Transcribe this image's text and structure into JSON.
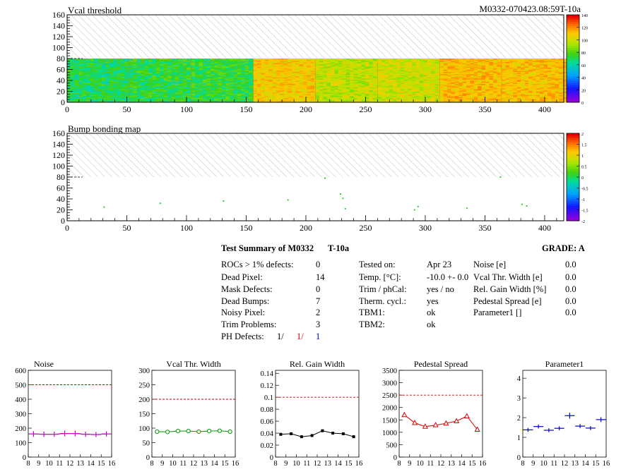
{
  "header": {
    "left_title": "Vcal threshold",
    "right_title": "M0332-070423.08:59T-10a"
  },
  "chart_data": [
    {
      "type": "heatmap",
      "title": "Vcal threshold",
      "xlim": [
        0,
        416
      ],
      "ylim": [
        0,
        160
      ],
      "x_ticks": [
        "0",
        "50",
        "100",
        "150",
        "200",
        "250",
        "300",
        "350",
        "400"
      ],
      "y_ticks": [
        "0",
        "20",
        "40",
        "60",
        "80",
        "100",
        "120",
        "140",
        "160"
      ],
      "hatched_region_y": [
        80,
        160
      ],
      "z_range": [
        0,
        140
      ],
      "colorbar_ticks": [
        "0",
        "20",
        "40",
        "60",
        "80",
        "100",
        "120",
        "140"
      ],
      "roc_blocks": [
        {
          "x": [
            0,
            52
          ],
          "mean": 70,
          "spread": 12
        },
        {
          "x": [
            52,
            104
          ],
          "mean": 73,
          "spread": 12
        },
        {
          "x": [
            104,
            156
          ],
          "mean": 74,
          "spread": 12
        },
        {
          "x": [
            156,
            208
          ],
          "mean": 110,
          "spread": 10
        },
        {
          "x": [
            208,
            260
          ],
          "mean": 98,
          "spread": 12
        },
        {
          "x": [
            260,
            312
          ],
          "mean": 100,
          "spread": 12
        },
        {
          "x": [
            312,
            364
          ],
          "mean": 113,
          "spread": 10
        },
        {
          "x": [
            364,
            416
          ],
          "mean": 112,
          "spread": 10
        }
      ]
    },
    {
      "type": "scatter",
      "title": "Bump bonding map",
      "xlim": [
        0,
        416
      ],
      "ylim": [
        0,
        160
      ],
      "x_ticks": [
        "0",
        "50",
        "100",
        "150",
        "200",
        "250",
        "300",
        "350",
        "400"
      ],
      "y_ticks": [
        "0",
        "20",
        "40",
        "60",
        "80",
        "100",
        "120",
        "140",
        "160"
      ],
      "hatched_region_y": [
        80,
        160
      ],
      "z_range": [
        -2,
        2
      ],
      "colorbar_ticks": [
        "-2",
        "-1.5",
        "-1",
        "-0.5",
        "0",
        "0.5",
        "1",
        "1.5",
        "2"
      ],
      "points": [
        [
          31,
          25
        ],
        [
          78,
          32
        ],
        [
          131,
          36
        ],
        [
          185,
          38
        ],
        [
          216,
          78
        ],
        [
          229,
          49
        ],
        [
          231,
          41
        ],
        [
          233,
          22
        ],
        [
          291,
          20
        ],
        [
          294,
          26
        ],
        [
          335,
          23
        ],
        [
          363,
          80
        ],
        [
          381,
          30
        ],
        [
          385,
          27
        ]
      ]
    },
    {
      "type": "line",
      "title": "Noise",
      "x": [
        8.5,
        9.5,
        10.5,
        11.5,
        12.5,
        13.5,
        14.5,
        15.5
      ],
      "values": [
        160,
        158,
        158,
        163,
        163,
        158,
        156,
        160
      ],
      "error": [
        20,
        18,
        18,
        20,
        20,
        18,
        18,
        18
      ],
      "threshold": 500,
      "xlim": [
        8,
        16
      ],
      "ylim": [
        0,
        600
      ],
      "y_ticks": [
        "0",
        "100",
        "200",
        "300",
        "400",
        "500",
        "600"
      ],
      "x_ticks": [
        "8",
        "9",
        "10",
        "11",
        "12",
        "13",
        "14",
        "15",
        "16"
      ],
      "color": "#cc00cc",
      "marker": "plus"
    },
    {
      "type": "line",
      "title": "Vcal Thr. Width",
      "x": [
        8.5,
        9.5,
        10.5,
        11.5,
        12.5,
        13.5,
        14.5,
        15.5
      ],
      "values": [
        88,
        87,
        90,
        90,
        88,
        90,
        91,
        88
      ],
      "threshold": 200,
      "xlim": [
        8,
        16
      ],
      "ylim": [
        0,
        300
      ],
      "y_ticks": [
        "0",
        "50",
        "100",
        "150",
        "200",
        "250",
        "300"
      ],
      "x_ticks": [
        "8",
        "9",
        "10",
        "11",
        "12",
        "13",
        "14",
        "15",
        "16"
      ],
      "color": "#009900",
      "marker": "circle"
    },
    {
      "type": "line",
      "title": "Rel. Gain Width",
      "x": [
        8.5,
        9.5,
        10.5,
        11.5,
        12.5,
        13.5,
        14.5,
        15.5
      ],
      "values": [
        0.038,
        0.039,
        0.034,
        0.036,
        0.044,
        0.04,
        0.039,
        0.034
      ],
      "threshold": 0.1,
      "xlim": [
        8,
        16
      ],
      "ylim": [
        0,
        0.145
      ],
      "y_ticks": [
        "0",
        "0.02",
        "0.04",
        "0.06",
        "0.08",
        "0.1",
        "0.12",
        "0.14"
      ],
      "x_ticks": [
        "8",
        "9",
        "10",
        "11",
        "12",
        "13",
        "14",
        "15",
        "16"
      ],
      "color": "#000000",
      "marker": "square"
    },
    {
      "type": "line",
      "title": "Pedestal Spread",
      "x": [
        8.5,
        9.5,
        10.5,
        11.5,
        12.5,
        13.5,
        14.5,
        15.5
      ],
      "values": [
        1700,
        1380,
        1230,
        1290,
        1360,
        1450,
        1650,
        1110
      ],
      "threshold": 2500,
      "xlim": [
        8,
        16
      ],
      "ylim": [
        0,
        3500
      ],
      "y_ticks": [
        "0",
        "500",
        "1000",
        "1500",
        "2000",
        "2500",
        "3000",
        "3500"
      ],
      "x_ticks": [
        "8",
        "9",
        "10",
        "11",
        "12",
        "13",
        "14",
        "15",
        "16"
      ],
      "color": "#dd0000",
      "marker": "triangle"
    },
    {
      "type": "line",
      "title": "Parameter1",
      "x": [
        8.5,
        9.5,
        10.5,
        11.5,
        12.5,
        13.5,
        14.5,
        15.5
      ],
      "values": [
        1.38,
        1.55,
        1.36,
        1.46,
        2.1,
        1.57,
        1.47,
        1.9
      ],
      "error": [
        0.1,
        0.1,
        0.1,
        0.1,
        0.15,
        0.1,
        0.1,
        0.12
      ],
      "threshold": null,
      "xlim": [
        8,
        16
      ],
      "ylim": [
        0,
        4.4
      ],
      "y_ticks": [
        "0",
        "1",
        "2",
        "3",
        "4"
      ],
      "x_ticks": [
        "8",
        "9",
        "10",
        "11",
        "12",
        "13",
        "14",
        "15",
        "16"
      ],
      "color": "#0000cc",
      "marker": "cross"
    }
  ],
  "summary": {
    "title": "Test Summary of M0332",
    "temp_label": "T-10a",
    "grade_label": "GRADE:  A",
    "col1": [
      {
        "label": "ROCs > 1% defects:",
        "value": "0"
      },
      {
        "label": "Dead Pixel:",
        "value": "14"
      },
      {
        "label": "Mask Defects:",
        "value": "0"
      },
      {
        "label": "Dead Bumps:",
        "value": "7"
      },
      {
        "label": "Noisy Pixel:",
        "value": "2"
      },
      {
        "label": "Trim Problems:",
        "value": "3"
      }
    ],
    "ph_label": "PH Defects:",
    "ph_values": [
      "1/",
      "1/",
      "1"
    ],
    "ph_colors": [
      "#000000",
      "#dd0000",
      "#0000cc"
    ],
    "col2": [
      {
        "label": "Tested on:",
        "value": "Apr 23"
      },
      {
        "label": "Temp. [°C]:",
        "value": "-10.0 +- 0.0"
      },
      {
        "label": "Trim / phCal:",
        "value": "yes / no"
      },
      {
        "label": "Therm. cycl.:",
        "value": "yes"
      },
      {
        "label": "TBM1:",
        "value": "ok"
      },
      {
        "label": "TBM2:",
        "value": "ok"
      }
    ],
    "col3": [
      {
        "label": "Noise [e]",
        "value": "0.0"
      },
      {
        "label": "Vcal Thr. Width [e]",
        "value": "0.0"
      },
      {
        "label": "Rel. Gain Width [%]",
        "value": "0.0"
      },
      {
        "label": "Pedestal Spread [e]",
        "value": "0.0"
      },
      {
        "label": "Parameter1 []",
        "value": "0.0"
      }
    ]
  }
}
